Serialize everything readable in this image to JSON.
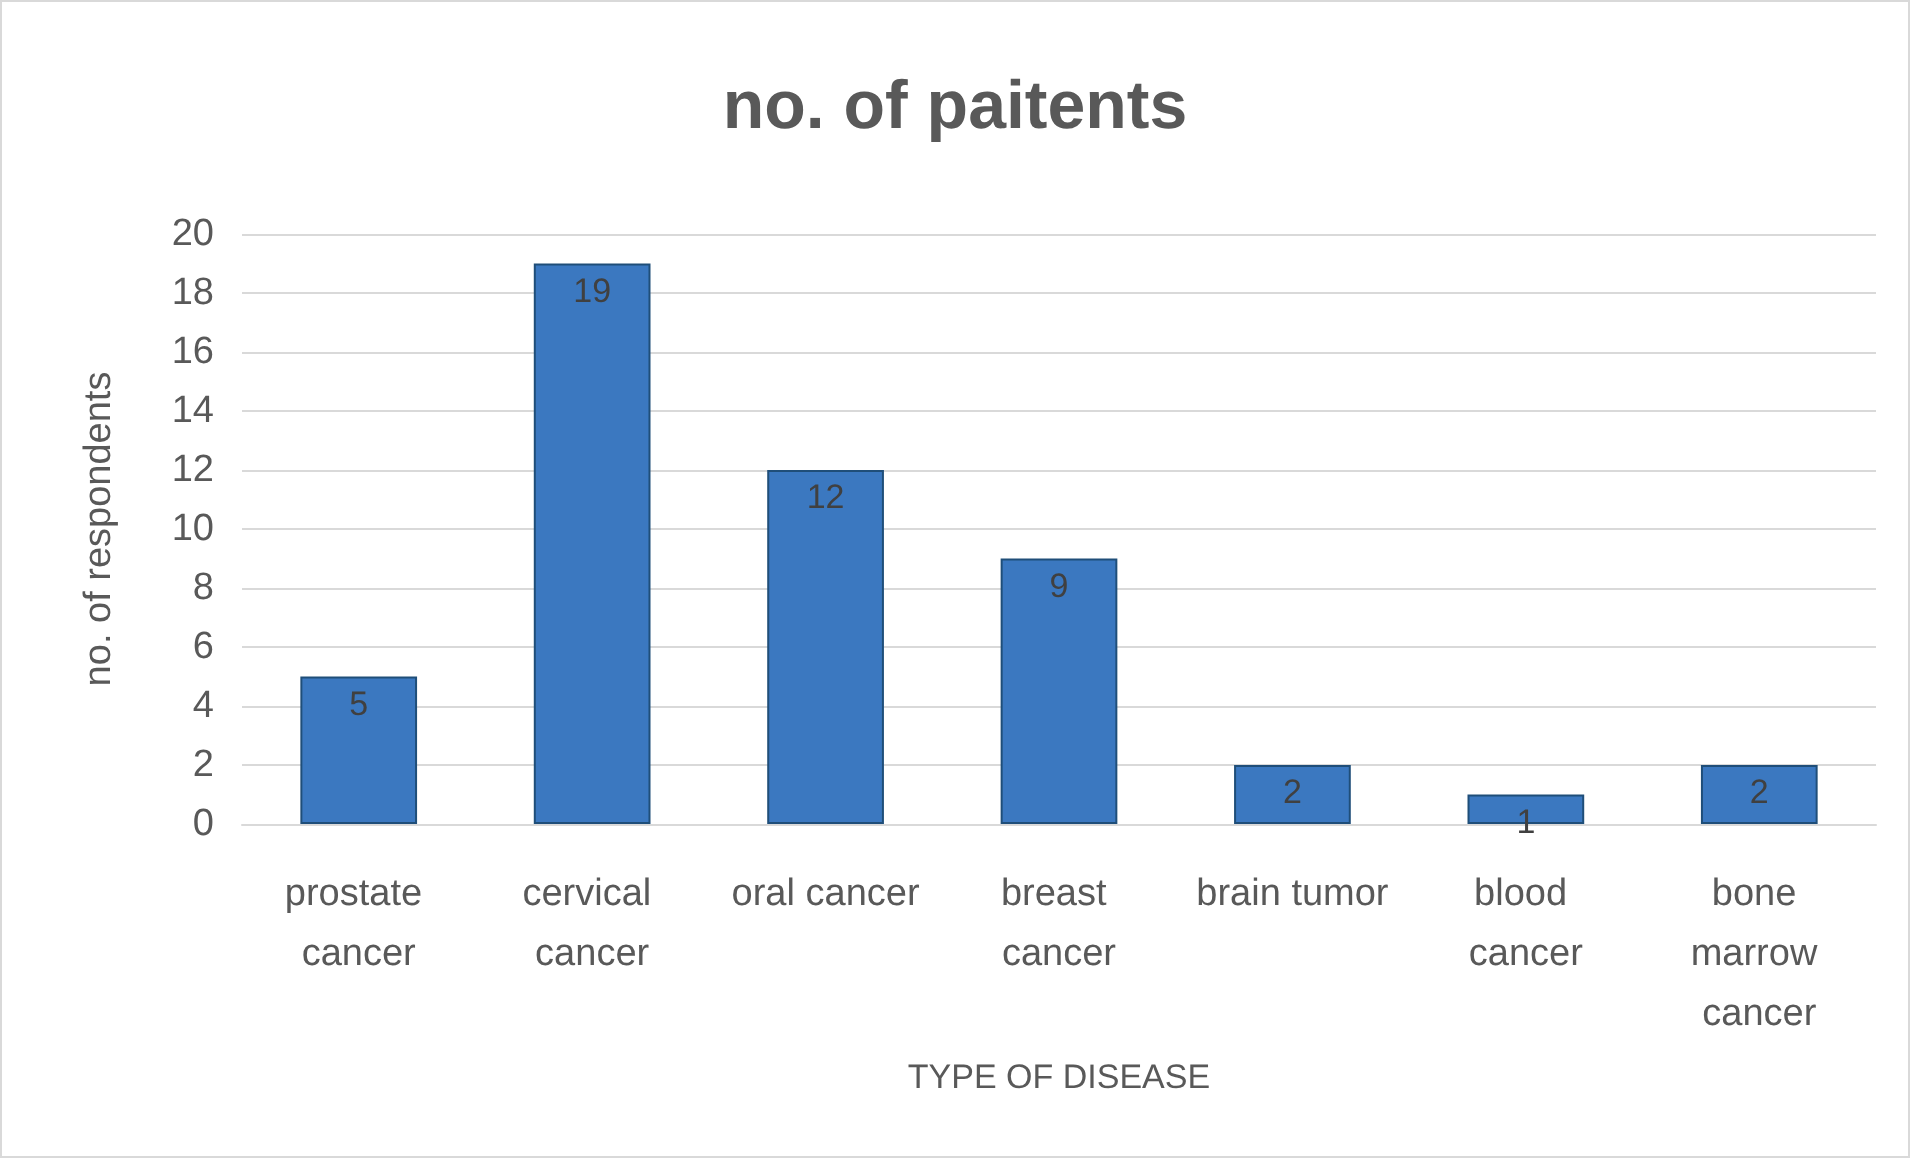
{
  "chart_data": {
    "type": "bar",
    "title": "no. of paitents",
    "xlabel": "TYPE OF DISEASE",
    "ylabel": "no. of respondents",
    "categories": [
      "prostate cancer",
      "cervical cancer",
      "oral cancer",
      "breast cancer",
      "brain tumor",
      "blood cancer",
      "bone marrow cancer"
    ],
    "values": [
      5,
      19,
      12,
      9,
      2,
      1,
      2
    ],
    "color": "#3b78c0",
    "ylim": [
      0,
      20
    ],
    "yticks": [
      0,
      2,
      4,
      6,
      8,
      10,
      12,
      14,
      16,
      18,
      20
    ],
    "grid": "y",
    "data_labels": true
  }
}
